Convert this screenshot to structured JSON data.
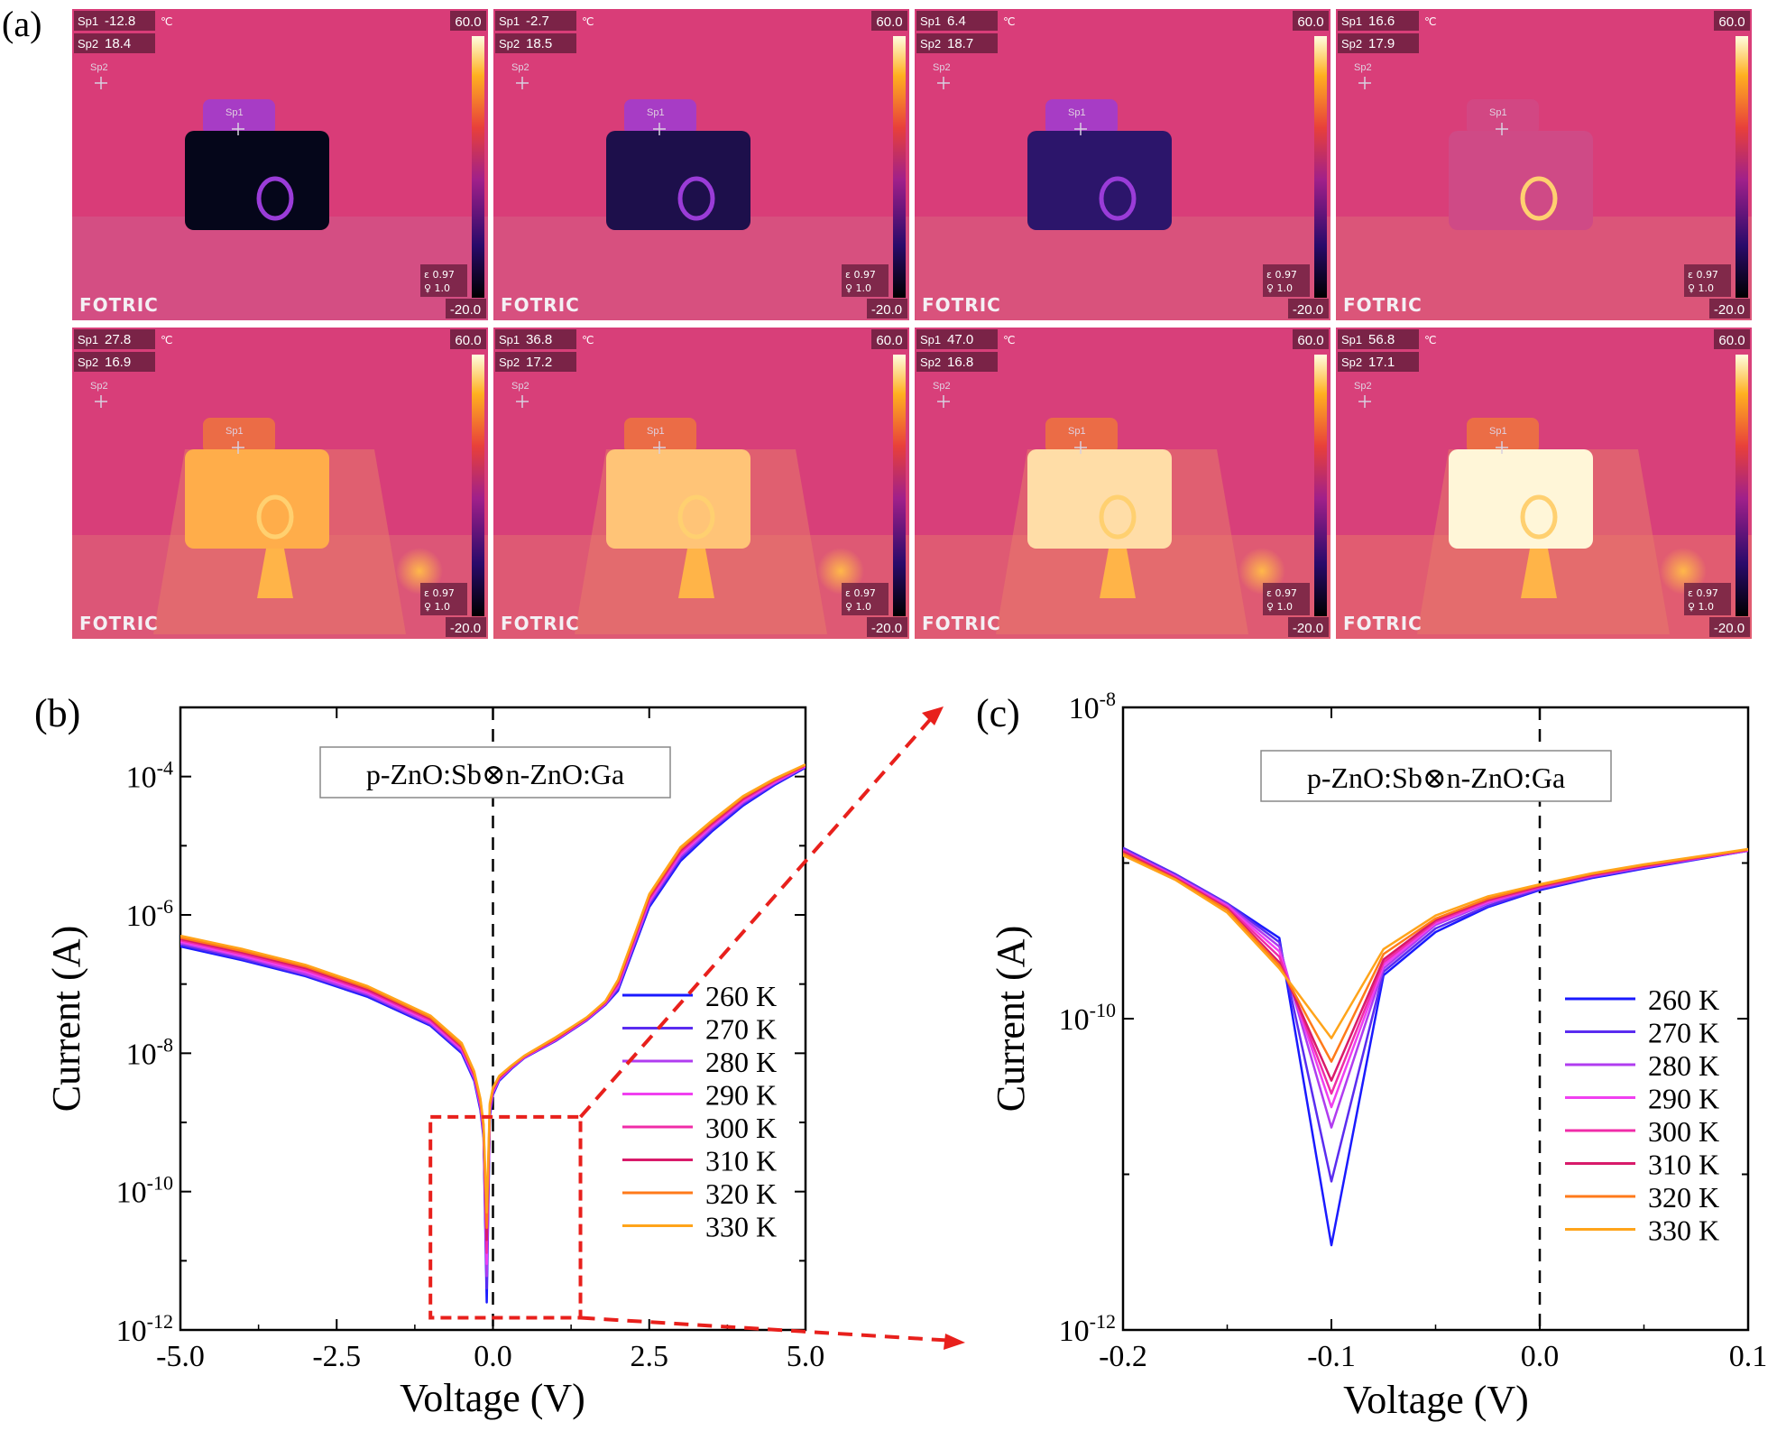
{
  "figure": {
    "panel_labels": {
      "a": "(a)",
      "b": "(b)",
      "c": "(c)"
    }
  },
  "thermal_images": {
    "scale_max": "60.0",
    "scale_min": "-20.0",
    "brand": "FOTRIC",
    "emissivity": "ε 0.97",
    "distance": "♀ 1.0",
    "spot1_label": "Sp1",
    "spot2_label": "Sp2",
    "unit": "℃",
    "frames": [
      {
        "sp1": "-12.8",
        "sp2": "18.4",
        "unit_shown": true,
        "heat": 0.0
      },
      {
        "sp1": "-2.7",
        "sp2": "18.5",
        "unit_shown": true,
        "heat": 0.2
      },
      {
        "sp1": "6.4",
        "sp2": "18.7",
        "unit_shown": true,
        "heat": 0.33
      },
      {
        "sp1": "16.6",
        "sp2": "17.9",
        "unit_shown": true,
        "heat": 0.5
      },
      {
        "sp1": "27.8",
        "sp2": "16.9",
        "unit_shown": true,
        "heat": 0.62
      },
      {
        "sp1": "36.8",
        "sp2": "17.2",
        "unit_shown": true,
        "heat": 0.74
      },
      {
        "sp1": "47.0",
        "sp2": "16.8",
        "unit_shown": true,
        "heat": 0.87
      },
      {
        "sp1": "56.8",
        "sp2": "17.1",
        "unit_shown": true,
        "heat": 1.0
      }
    ]
  },
  "colors": {
    "260 K": "#1a1aff",
    "270 K": "#5a2cf0",
    "280 K": "#b03cf0",
    "290 K": "#f040f0",
    "300 K": "#f02ca8",
    "310 K": "#d81a6a",
    "320 K": "#ff7a1a",
    "330 K": "#ffa41a",
    "zoom_box": "#e8201c"
  },
  "chart_data": [
    {
      "panel": "(b)",
      "type": "line",
      "annotation": "p-ZnO:Sb⊗n-ZnO:Ga",
      "xlabel": "Voltage (V)",
      "ylabel": "Current (A)",
      "xlim": [
        -5.0,
        5.0
      ],
      "ylim": [
        1e-12,
        0.001
      ],
      "yscale": "log",
      "xticks": [
        "-5.0",
        "-2.5",
        "0.0",
        "2.5",
        "5.0"
      ],
      "yticks": [
        {
          "base": "10",
          "exp": "-12"
        },
        {
          "base": "10",
          "exp": "-10"
        },
        {
          "base": "10",
          "exp": "-8"
        },
        {
          "base": "10",
          "exp": "-6"
        },
        {
          "base": "10",
          "exp": "-4"
        }
      ],
      "legend_position": "center-right",
      "vline_x": 0.0,
      "zoom_box": {
        "x": [
          -1.0,
          1.4
        ],
        "y": [
          1.5e-12,
          1.2e-09
        ]
      },
      "x": [
        -5.0,
        -4.0,
        -3.0,
        -2.0,
        -1.0,
        -0.5,
        -0.3,
        -0.2,
        -0.15,
        -0.1,
        -0.05,
        0.0,
        0.1,
        0.3,
        0.5,
        1.0,
        1.5,
        1.8,
        2.0,
        2.5,
        3.0,
        3.5,
        4.0,
        4.5,
        5.0
      ],
      "series": [
        {
          "name": "260 K",
          "values": [
            3.5e-07,
            2.2e-07,
            1.3e-07,
            6.5e-08,
            2.5e-08,
            1e-08,
            4e-09,
            1.5e-09,
            6e-10,
            2.5e-12,
            1.2e-09,
            2.5e-09,
            4e-09,
            6e-09,
            8.5e-09,
            1.5e-08,
            3e-08,
            5e-08,
            8e-08,
            1.3e-06,
            6e-06,
            1.6e-05,
            3.8e-05,
            7.5e-05,
            0.000135
          ]
        },
        {
          "name": "270 K",
          "values": [
            3.7e-07,
            2.3e-07,
            1.35e-07,
            6.8e-08,
            2.6e-08,
            1.05e-08,
            4.2e-09,
            1.6e-09,
            6.5e-10,
            4e-12,
            1.3e-09,
            2.6e-09,
            4.1e-09,
            6.1e-09,
            8.6e-09,
            1.5e-08,
            3e-08,
            5e-08,
            8.5e-08,
            1.4e-06,
            6.5e-06,
            1.7e-05,
            4e-05,
            7.8e-05,
            0.000138
          ]
        },
        {
          "name": "280 K",
          "values": [
            3.9e-07,
            2.45e-07,
            1.4e-07,
            7.1e-08,
            2.7e-08,
            1.1e-08,
            4.4e-09,
            1.7e-09,
            7e-10,
            6e-12,
            1.4e-09,
            2.7e-09,
            4.2e-09,
            6.2e-09,
            8.7e-09,
            1.55e-08,
            3.1e-08,
            5.2e-08,
            9e-08,
            1.5e-06,
            7e-06,
            1.8e-05,
            4.2e-05,
            8e-05,
            0.00014
          ]
        },
        {
          "name": "290 K",
          "values": [
            4.1e-07,
            2.55e-07,
            1.5e-07,
            7.5e-08,
            2.85e-08,
            1.15e-08,
            4.6e-09,
            1.8e-09,
            7.5e-10,
            9e-12,
            1.5e-09,
            2.8e-09,
            4.3e-09,
            6.3e-09,
            8.8e-09,
            1.55e-08,
            3.1e-08,
            5.3e-08,
            9.5e-08,
            1.6e-06,
            7.5e-06,
            1.9e-05,
            4.4e-05,
            8.2e-05,
            0.000142
          ]
        },
        {
          "name": "300 K",
          "values": [
            4.3e-07,
            2.7e-07,
            1.6e-07,
            7.9e-08,
            3e-08,
            1.2e-08,
            4.8e-09,
            1.9e-09,
            8e-10,
            1.3e-11,
            1.6e-09,
            2.9e-09,
            4.4e-09,
            6.4e-09,
            8.9e-09,
            1.6e-08,
            3.2e-08,
            5.4e-08,
            1e-07,
            1.7e-06,
            8e-06,
            2e-05,
            4.6e-05,
            8.5e-05,
            0.000144
          ]
        },
        {
          "name": "310 K",
          "values": [
            4.5e-07,
            2.85e-07,
            1.7e-07,
            8.3e-08,
            3.15e-08,
            1.25e-08,
            5e-09,
            2e-09,
            8.5e-10,
            2e-11,
            1.7e-09,
            3e-09,
            4.5e-09,
            6.5e-09,
            9e-09,
            1.6e-08,
            3.2e-08,
            5.5e-08,
            1.05e-07,
            1.8e-06,
            8.5e-06,
            2.1e-05,
            4.8e-05,
            8.8e-05,
            0.000146
          ]
        },
        {
          "name": "320 K",
          "values": [
            4.7e-07,
            3e-07,
            1.8e-07,
            8.8e-08,
            3.3e-08,
            1.3e-08,
            5.2e-09,
            2.1e-09,
            9e-10,
            3e-11,
            1.8e-09,
            3.1e-09,
            4.6e-09,
            6.6e-09,
            9.1e-09,
            1.65e-08,
            3.3e-08,
            5.6e-08,
            1.1e-07,
            1.9e-06,
            9e-06,
            2.2e-05,
            5e-05,
            9e-05,
            0.000148
          ]
        },
        {
          "name": "330 K",
          "values": [
            5e-07,
            3.2e-07,
            1.9e-07,
            9.3e-08,
            3.5e-08,
            1.4e-08,
            5.5e-09,
            2.2e-09,
            9.5e-10,
            5e-11,
            1.9e-09,
            3.2e-09,
            4.7e-09,
            6.7e-09,
            9.2e-09,
            1.7e-08,
            3.3e-08,
            5.7e-08,
            1.15e-07,
            2e-06,
            9.5e-06,
            2.3e-05,
            5.2e-05,
            9.3e-05,
            0.00015
          ]
        }
      ]
    },
    {
      "panel": "(c)",
      "type": "line",
      "annotation": "p-ZnO:Sb⊗n-ZnO:Ga",
      "xlabel": "Voltage (V)",
      "ylabel": "Current (A)",
      "xlim": [
        -0.2,
        0.1
      ],
      "ylim": [
        1e-12,
        1e-08
      ],
      "yscale": "log",
      "xticks": [
        "-0.2",
        "-0.1",
        "0.0",
        "0.1"
      ],
      "yticks": [
        {
          "base": "10",
          "exp": "-12"
        },
        {
          "base": "10",
          "exp": "-10"
        },
        {
          "base": "10",
          "exp": "-8"
        }
      ],
      "legend_position": "center-right",
      "vline_x": 0.0,
      "x": [
        -0.2,
        -0.175,
        -0.15,
        -0.125,
        -0.1,
        -0.075,
        -0.05,
        -0.025,
        0.0,
        0.025,
        0.05,
        0.1
      ],
      "series": [
        {
          "name": "260 K",
          "values": [
            1.25e-09,
            8.5e-10,
            5.5e-10,
            3.3e-10,
            3.5e-12,
            1.9e-10,
            3.6e-10,
            5.2e-10,
            6.7e-10,
            8e-10,
            9.2e-10,
            1.2e-09
          ]
        },
        {
          "name": "270 K",
          "values": [
            1.25e-09,
            8.5e-10,
            5.5e-10,
            3.1e-10,
            9e-12,
            2e-10,
            3.8e-10,
            5.3e-10,
            6.8e-10,
            8.1e-10,
            9.3e-10,
            1.2e-09
          ]
        },
        {
          "name": "280 K",
          "values": [
            1.22e-09,
            8.3e-10,
            5.4e-10,
            2.9e-10,
            2e-11,
            2.1e-10,
            4e-10,
            5.5e-10,
            6.9e-10,
            8.2e-10,
            9.4e-10,
            1.2e-09
          ]
        },
        {
          "name": "290 K",
          "values": [
            1.2e-09,
            8.2e-10,
            5.3e-10,
            2.7e-10,
            2.7e-11,
            2.2e-10,
            4.1e-10,
            5.6e-10,
            7e-10,
            8.3e-10,
            9.5e-10,
            1.21e-09
          ]
        },
        {
          "name": "300 K",
          "values": [
            1.2e-09,
            8.1e-10,
            5.2e-10,
            2.5e-10,
            3.3e-11,
            2.3e-10,
            4.2e-10,
            5.7e-10,
            7e-10,
            8.3e-10,
            9.5e-10,
            1.21e-09
          ]
        },
        {
          "name": "310 K",
          "values": [
            1.18e-09,
            8e-10,
            5.1e-10,
            2.3e-10,
            4e-11,
            2.4e-10,
            4.3e-10,
            5.8e-10,
            7.1e-10,
            8.4e-10,
            9.6e-10,
            1.22e-09
          ]
        },
        {
          "name": "320 K",
          "values": [
            1.15e-09,
            7.9e-10,
            5e-10,
            2.2e-10,
            5.3e-11,
            2.6e-10,
            4.4e-10,
            5.9e-10,
            7.2e-10,
            8.5e-10,
            9.7e-10,
            1.22e-09
          ]
        },
        {
          "name": "330 K",
          "values": [
            1.12e-09,
            7.8e-10,
            4.8e-10,
            2.1e-10,
            7.5e-11,
            2.8e-10,
            4.6e-10,
            6.1e-10,
            7.3e-10,
            8.6e-10,
            9.8e-10,
            1.23e-09
          ]
        }
      ]
    }
  ]
}
